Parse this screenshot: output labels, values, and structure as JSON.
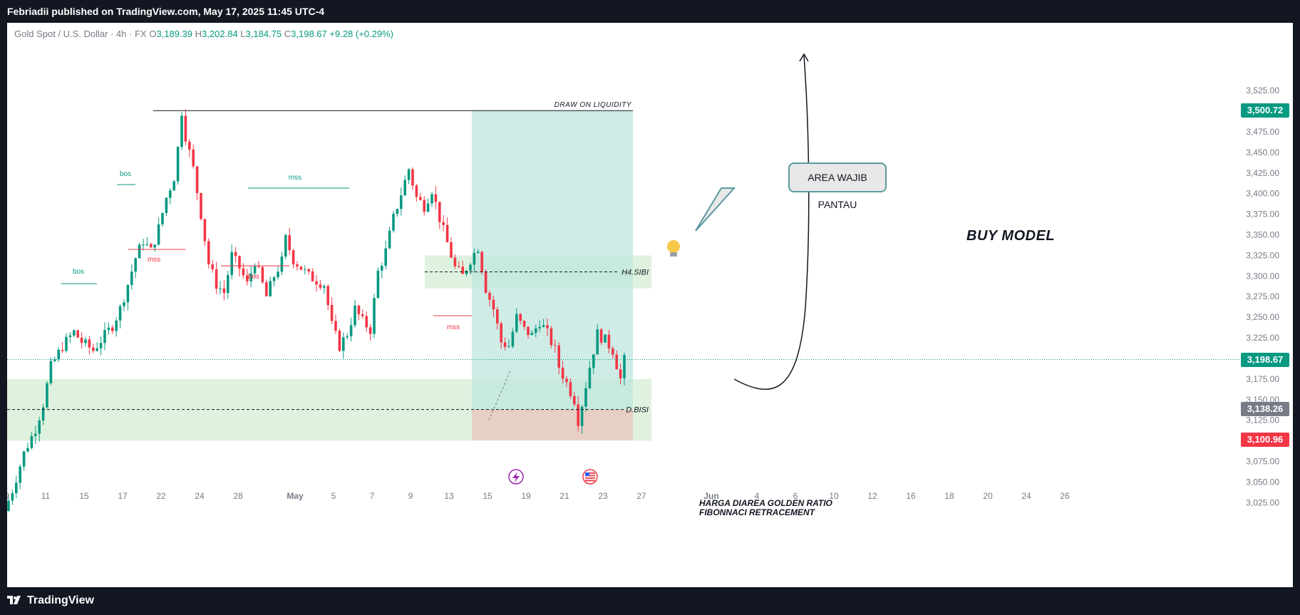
{
  "header": {
    "published": "Febriadii published on TradingView.com, May 17, 2025 11:45 UTC-4"
  },
  "footer": {
    "brand": "TradingView"
  },
  "legend": {
    "symbol": "Gold Spot / U.S. Dollar · 4h · FX",
    "o_label": "O",
    "o": "3,189.39",
    "h_label": "H",
    "h": "3,202.84",
    "l_label": "L",
    "l": "3,184.75",
    "c_label": "C",
    "c": "3,198.67",
    "change": "+9.28 (+0.29%)"
  },
  "annotations": {
    "draw_on_liquidity": "DRAW ON LIQUIDITY",
    "h4_sibi": "H4.SIBI",
    "d_bisi": "D.BISI",
    "callout": "AREA WAJIB PANTAU",
    "buy_model": "BUY MODEL",
    "note_line1": "HARGA DIAREA GOLDEN RATIO",
    "note_line2": "FIBONNACI RETRACEMENT",
    "structure_labels": [
      {
        "text": "bos",
        "color": "#089981"
      },
      {
        "text": "bos",
        "color": "#089981"
      },
      {
        "text": "mss",
        "color": "#f23645"
      },
      {
        "text": "bos",
        "color": "#f23645"
      },
      {
        "text": "mss",
        "color": "#089981"
      },
      {
        "text": "mss",
        "color": "#f23645"
      }
    ]
  },
  "price_tags": [
    {
      "value": "3,500.72",
      "color": "#089981"
    },
    {
      "value": "3,198.67",
      "color": "#089981"
    },
    {
      "value": "3,138.26",
      "color": "#787b86"
    },
    {
      "value": "3,100.96",
      "color": "#f23645"
    }
  ],
  "colors": {
    "up": "#089981",
    "down": "#f23645",
    "target_zone": "#bfe6dd",
    "stop_zone": "#e9c9c1",
    "fvg_zone": "#d7efd7"
  },
  "icons": [
    "lightbulb-icon",
    "lightning-event-icon",
    "us-flag-event-icon"
  ],
  "chart_data": {
    "type": "candlestick",
    "timeframe": "4h",
    "ylim": [
      3000,
      3545
    ],
    "y_ticks": [
      3025,
      3050,
      3075,
      3100,
      3125,
      3150,
      3175,
      3200,
      3225,
      3250,
      3275,
      3300,
      3325,
      3350,
      3375,
      3400,
      3425,
      3450,
      3475,
      3500,
      3525
    ],
    "y_tick_labels": [
      "3,025.00",
      "3,050.00",
      "3,075.00",
      "3,100.00",
      "3,125.00",
      "3,150.00",
      "3,175.00",
      "3,200.00",
      "3,225.00",
      "3,250.00",
      "3,275.00",
      "3,300.00",
      "3,325.00",
      "3,350.00",
      "3,375.00",
      "3,400.00",
      "3,425.00",
      "3,450.00",
      "3,475.00",
      "3,500.00",
      "3,525.00"
    ],
    "x_tick_labels": [
      "9",
      "11",
      "15",
      "17",
      "22",
      "24",
      "28",
      "May",
      "5",
      "7",
      "9",
      "13",
      "15",
      "19",
      "21",
      "23",
      "27",
      "Jun",
      "4",
      "6",
      "10",
      "12",
      "16",
      "18",
      "20",
      "24",
      "26"
    ],
    "price_line": 3198.67,
    "zones": {
      "target": {
        "from": 3138.26,
        "to": 3500.72
      },
      "stop": {
        "from": 3100.96,
        "to": 3138.26
      },
      "h4_sibi": {
        "from": 3285,
        "to": 3325,
        "mid": 3305
      },
      "d_bisi": {
        "from": 3100,
        "to": 3175,
        "mid": 3138
      }
    },
    "path_points": [
      [
        0,
        3015
      ],
      [
        2,
        3040
      ],
      [
        5,
        3085
      ],
      [
        8,
        3115
      ],
      [
        10,
        3145
      ],
      [
        12,
        3190
      ],
      [
        15,
        3215
      ],
      [
        18,
        3232
      ],
      [
        20,
        3220
      ],
      [
        23,
        3210
      ],
      [
        26,
        3228
      ],
      [
        28,
        3240
      ],
      [
        30,
        3260
      ],
      [
        32,
        3290
      ],
      [
        34,
        3322
      ],
      [
        36,
        3343
      ],
      [
        38,
        3330
      ],
      [
        40,
        3358
      ],
      [
        42,
        3395
      ],
      [
        44,
        3420
      ],
      [
        45,
        3455
      ],
      [
        46,
        3500
      ],
      [
        47,
        3470
      ],
      [
        49,
        3430
      ],
      [
        51,
        3375
      ],
      [
        53,
        3315
      ],
      [
        55,
        3290
      ],
      [
        57,
        3280
      ],
      [
        59,
        3325
      ],
      [
        61,
        3310
      ],
      [
        63,
        3290
      ],
      [
        65,
        3318
      ],
      [
        67,
        3290
      ],
      [
        68,
        3275
      ],
      [
        70,
        3300
      ],
      [
        72,
        3318
      ],
      [
        73,
        3345
      ],
      [
        75,
        3320
      ],
      [
        77,
        3310
      ],
      [
        79,
        3300
      ],
      [
        81,
        3295
      ],
      [
        83,
        3290
      ],
      [
        85,
        3240
      ],
      [
        87,
        3215
      ],
      [
        89,
        3230
      ],
      [
        91,
        3260
      ],
      [
        93,
        3245
      ],
      [
        95,
        3235
      ],
      [
        97,
        3305
      ],
      [
        99,
        3330
      ],
      [
        101,
        3370
      ],
      [
        103,
        3400
      ],
      [
        105,
        3430
      ],
      [
        107,
        3395
      ],
      [
        109,
        3385
      ],
      [
        111,
        3405
      ],
      [
        113,
        3370
      ],
      [
        115,
        3340
      ],
      [
        117,
        3310
      ],
      [
        119,
        3300
      ],
      [
        121,
        3320
      ],
      [
        123,
        3335
      ],
      [
        125,
        3285
      ],
      [
        127,
        3260
      ],
      [
        129,
        3220
      ],
      [
        131,
        3215
      ],
      [
        133,
        3250
      ],
      [
        135,
        3235
      ],
      [
        137,
        3228
      ],
      [
        139,
        3245
      ],
      [
        141,
        3230
      ],
      [
        143,
        3210
      ],
      [
        144,
        3190
      ],
      [
        146,
        3170
      ],
      [
        148,
        3150
      ],
      [
        149,
        3125
      ],
      [
        150,
        3145
      ],
      [
        152,
        3190
      ],
      [
        154,
        3230
      ],
      [
        156,
        3222
      ],
      [
        158,
        3210
      ],
      [
        160,
        3175
      ],
      [
        161,
        3198
      ]
    ]
  }
}
